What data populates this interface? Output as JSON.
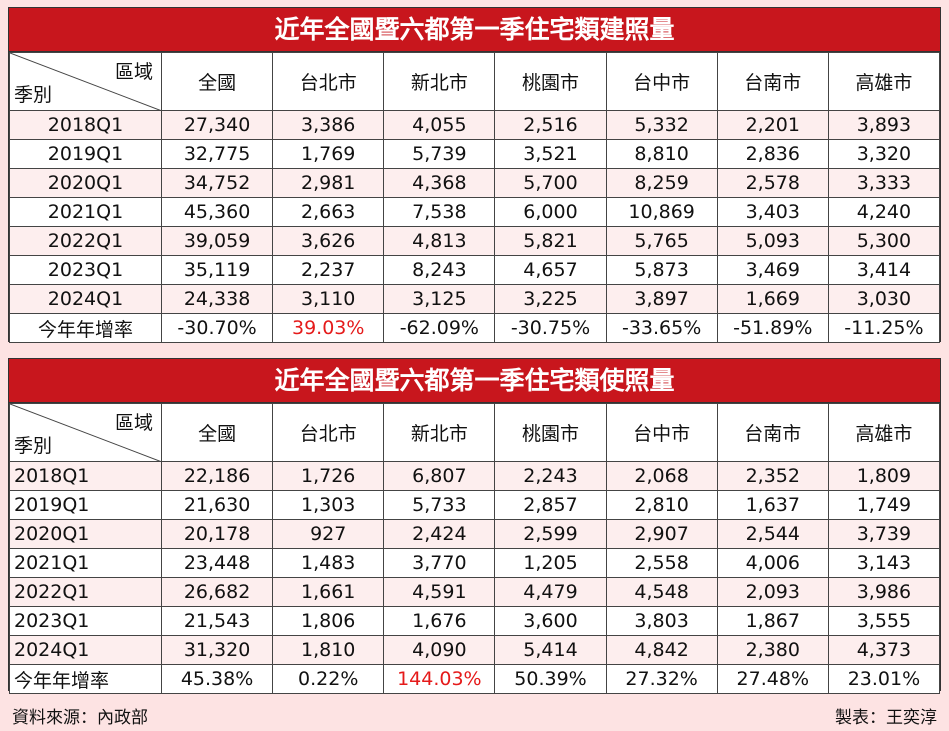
{
  "tables": [
    {
      "title": "近年全國暨六都第一季住宅類建照量",
      "corner_top": "區域",
      "corner_bottom": "季別",
      "columns": [
        "全國",
        "台北市",
        "新北市",
        "桃園市",
        "台中市",
        "台南市",
        "高雄市"
      ],
      "rows": [
        {
          "label": "2018Q1",
          "cells": [
            "27,340",
            "3,386",
            "4,055",
            "2,516",
            "5,332",
            "2,201",
            "3,893"
          ]
        },
        {
          "label": "2019Q1",
          "cells": [
            "32,775",
            "1,769",
            "5,739",
            "3,521",
            "8,810",
            "2,836",
            "3,320"
          ]
        },
        {
          "label": "2020Q1",
          "cells": [
            "34,752",
            "2,981",
            "4,368",
            "5,700",
            "8,259",
            "2,578",
            "3,333"
          ]
        },
        {
          "label": "2021Q1",
          "cells": [
            "45,360",
            "2,663",
            "7,538",
            "6,000",
            "10,869",
            "3,403",
            "4,240"
          ]
        },
        {
          "label": "2022Q1",
          "cells": [
            "39,059",
            "3,626",
            "4,813",
            "5,821",
            "5,765",
            "5,093",
            "5,300"
          ]
        },
        {
          "label": "2023Q1",
          "cells": [
            "35,119",
            "2,237",
            "8,243",
            "4,657",
            "5,873",
            "3,469",
            "3,414"
          ]
        },
        {
          "label": "2024Q1",
          "cells": [
            "24,338",
            "3,110",
            "3,125",
            "3,225",
            "3,897",
            "1,669",
            "3,030"
          ]
        },
        {
          "label": "今年年增率",
          "cells": [
            "-30.70%",
            "39.03%",
            "-62.09%",
            "-30.75%",
            "-33.65%",
            "-51.89%",
            "-11.25%"
          ]
        }
      ],
      "highlight_color": "#e51a1a",
      "highlight_cell": {
        "row": 7,
        "col": 1
      }
    },
    {
      "title": "近年全國暨六都第一季住宅類使照量",
      "corner_top": "區域",
      "corner_bottom": "季別",
      "columns": [
        "全國",
        "台北市",
        "新北市",
        "桃園市",
        "台中市",
        "台南市",
        "高雄市"
      ],
      "rows": [
        {
          "label": "2018Q1",
          "cells": [
            "22,186",
            "1,726",
            "6,807",
            "2,243",
            "2,068",
            "2,352",
            "1,809"
          ]
        },
        {
          "label": "2019Q1",
          "cells": [
            "21,630",
            "1,303",
            "5,733",
            "2,857",
            "2,810",
            "1,637",
            "1,749"
          ]
        },
        {
          "label": "2020Q1",
          "cells": [
            "20,178",
            "927",
            "2,424",
            "2,599",
            "2,907",
            "2,544",
            "3,739"
          ]
        },
        {
          "label": "2021Q1",
          "cells": [
            "23,448",
            "1,483",
            "3,770",
            "1,205",
            "2,558",
            "4,006",
            "3,143"
          ]
        },
        {
          "label": "2022Q1",
          "cells": [
            "26,682",
            "1,661",
            "4,591",
            "4,479",
            "4,548",
            "2,093",
            "3,986"
          ]
        },
        {
          "label": "2023Q1",
          "cells": [
            "21,543",
            "1,806",
            "1,676",
            "3,600",
            "3,803",
            "1,867",
            "3,555"
          ]
        },
        {
          "label": "2024Q1",
          "cells": [
            "31,320",
            "1,810",
            "4,090",
            "5,414",
            "4,842",
            "2,380",
            "4,373"
          ]
        },
        {
          "label": "今年年增率",
          "cells": [
            "45.38%",
            "0.22%",
            "144.03%",
            "50.39%",
            "27.32%",
            "27.48%",
            "23.01%"
          ]
        }
      ],
      "highlight_color": "#e51a1a",
      "highlight_cell": {
        "row": 7,
        "col": 2
      }
    }
  ],
  "footer": {
    "source": "資料來源：內政部",
    "maker": "製表：王奕淳"
  },
  "colors": {
    "title_bar": "#c8161d",
    "page_background": "#fde3e3",
    "row_tint": "#fdeeee"
  }
}
